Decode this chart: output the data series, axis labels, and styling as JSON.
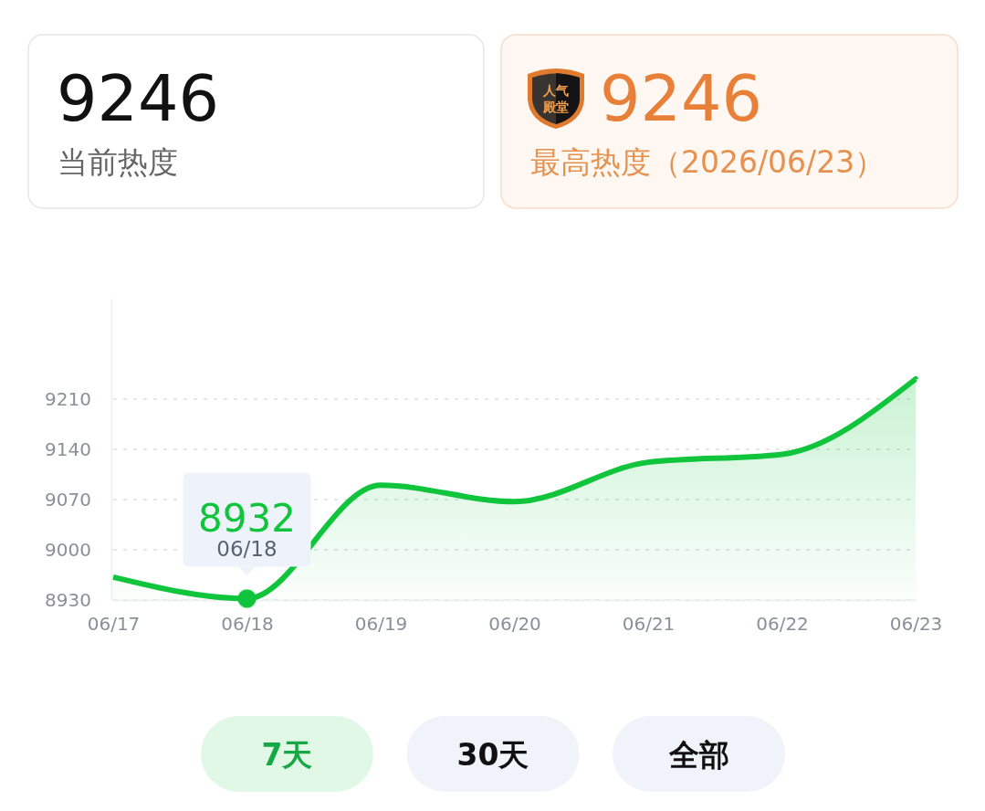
{
  "chart_data": [
    {
      "type": "other",
      "annotations": [
        "9246",
        "当前热度"
      ]
    },
    {
      "type": "other",
      "annotations": [
        "人气殿堂",
        "9246",
        "最高热度（2026/06/23）"
      ]
    },
    {
      "type": "area",
      "categories": [
        "06/17",
        "06/18",
        "06/19",
        "06/20",
        "06/21",
        "06/22",
        "06/23"
      ],
      "series": [
        {
          "color": "#10c43c",
          "values": [
            8962,
            8932,
            9090,
            9067,
            9122,
            9133,
            9238
          ]
        }
      ],
      "ylim": [
        8930,
        9350
      ],
      "yticks": [
        8930,
        9000,
        9070,
        9140,
        9210
      ],
      "grid": "y",
      "annotations": [
        {
          "text": "8932",
          "x": "06/18",
          "y": 8932
        },
        {
          "text": "06/18",
          "x": "06/18",
          "y": 8932
        }
      ]
    },
    {
      "type": "other",
      "annotations": [
        "7天",
        "30天",
        "全部"
      ]
    }
  ]
}
